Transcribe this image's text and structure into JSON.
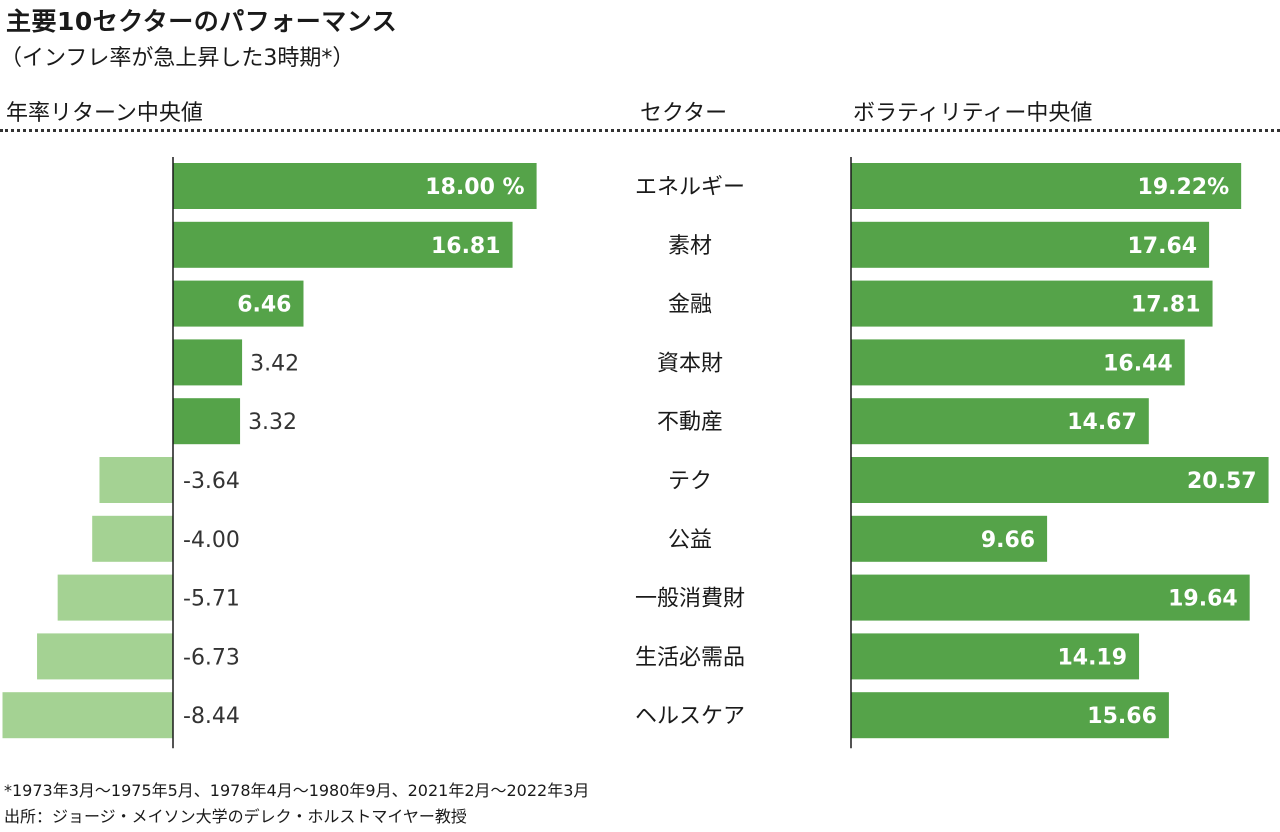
{
  "title": "主要10セクターのパフォーマンス",
  "subtitle": "（インフレ率が急上昇した3時期*）",
  "columns": {
    "left": "年率リターン中央値",
    "center": "セクター",
    "right": "ボラティリティー中央値"
  },
  "footnote": "*1973年3月〜1975年5月、1978年4月〜1980年9月、2021年2月〜2022年3月",
  "source": "出所：ジョージ・メイソン大学のデレク・ホルストマイヤー教授",
  "colors": {
    "positive": "#55a349",
    "negative": "#a4d293",
    "axis": "#1a1a1a"
  },
  "chart_data": {
    "type": "bar",
    "orientation": "horizontal",
    "categories": [
      "エネルギー",
      "素材",
      "金融",
      "資本財",
      "不動産",
      "テク",
      "公益",
      "一般消費財",
      "生活必需品",
      "ヘルスケア"
    ],
    "series": [
      {
        "name": "年率リターン中央値",
        "values": [
          18.0,
          16.81,
          6.46,
          3.42,
          3.32,
          -3.64,
          -4.0,
          -5.71,
          -6.73,
          -8.44
        ],
        "labels": [
          "18.00 %",
          "16.81",
          "6.46",
          "3.42",
          "3.32",
          "-3.64",
          "-4.00",
          "-5.71",
          "-6.73",
          "-8.44"
        ]
      },
      {
        "name": "ボラティリティー中央値",
        "values": [
          19.22,
          17.64,
          17.81,
          16.44,
          14.67,
          20.57,
          9.66,
          19.64,
          14.19,
          15.66
        ],
        "labels": [
          "19.22%",
          "17.64",
          "17.81",
          "16.44",
          "14.67",
          "20.57",
          "9.66",
          "19.64",
          "14.19",
          "15.66"
        ]
      }
    ]
  }
}
